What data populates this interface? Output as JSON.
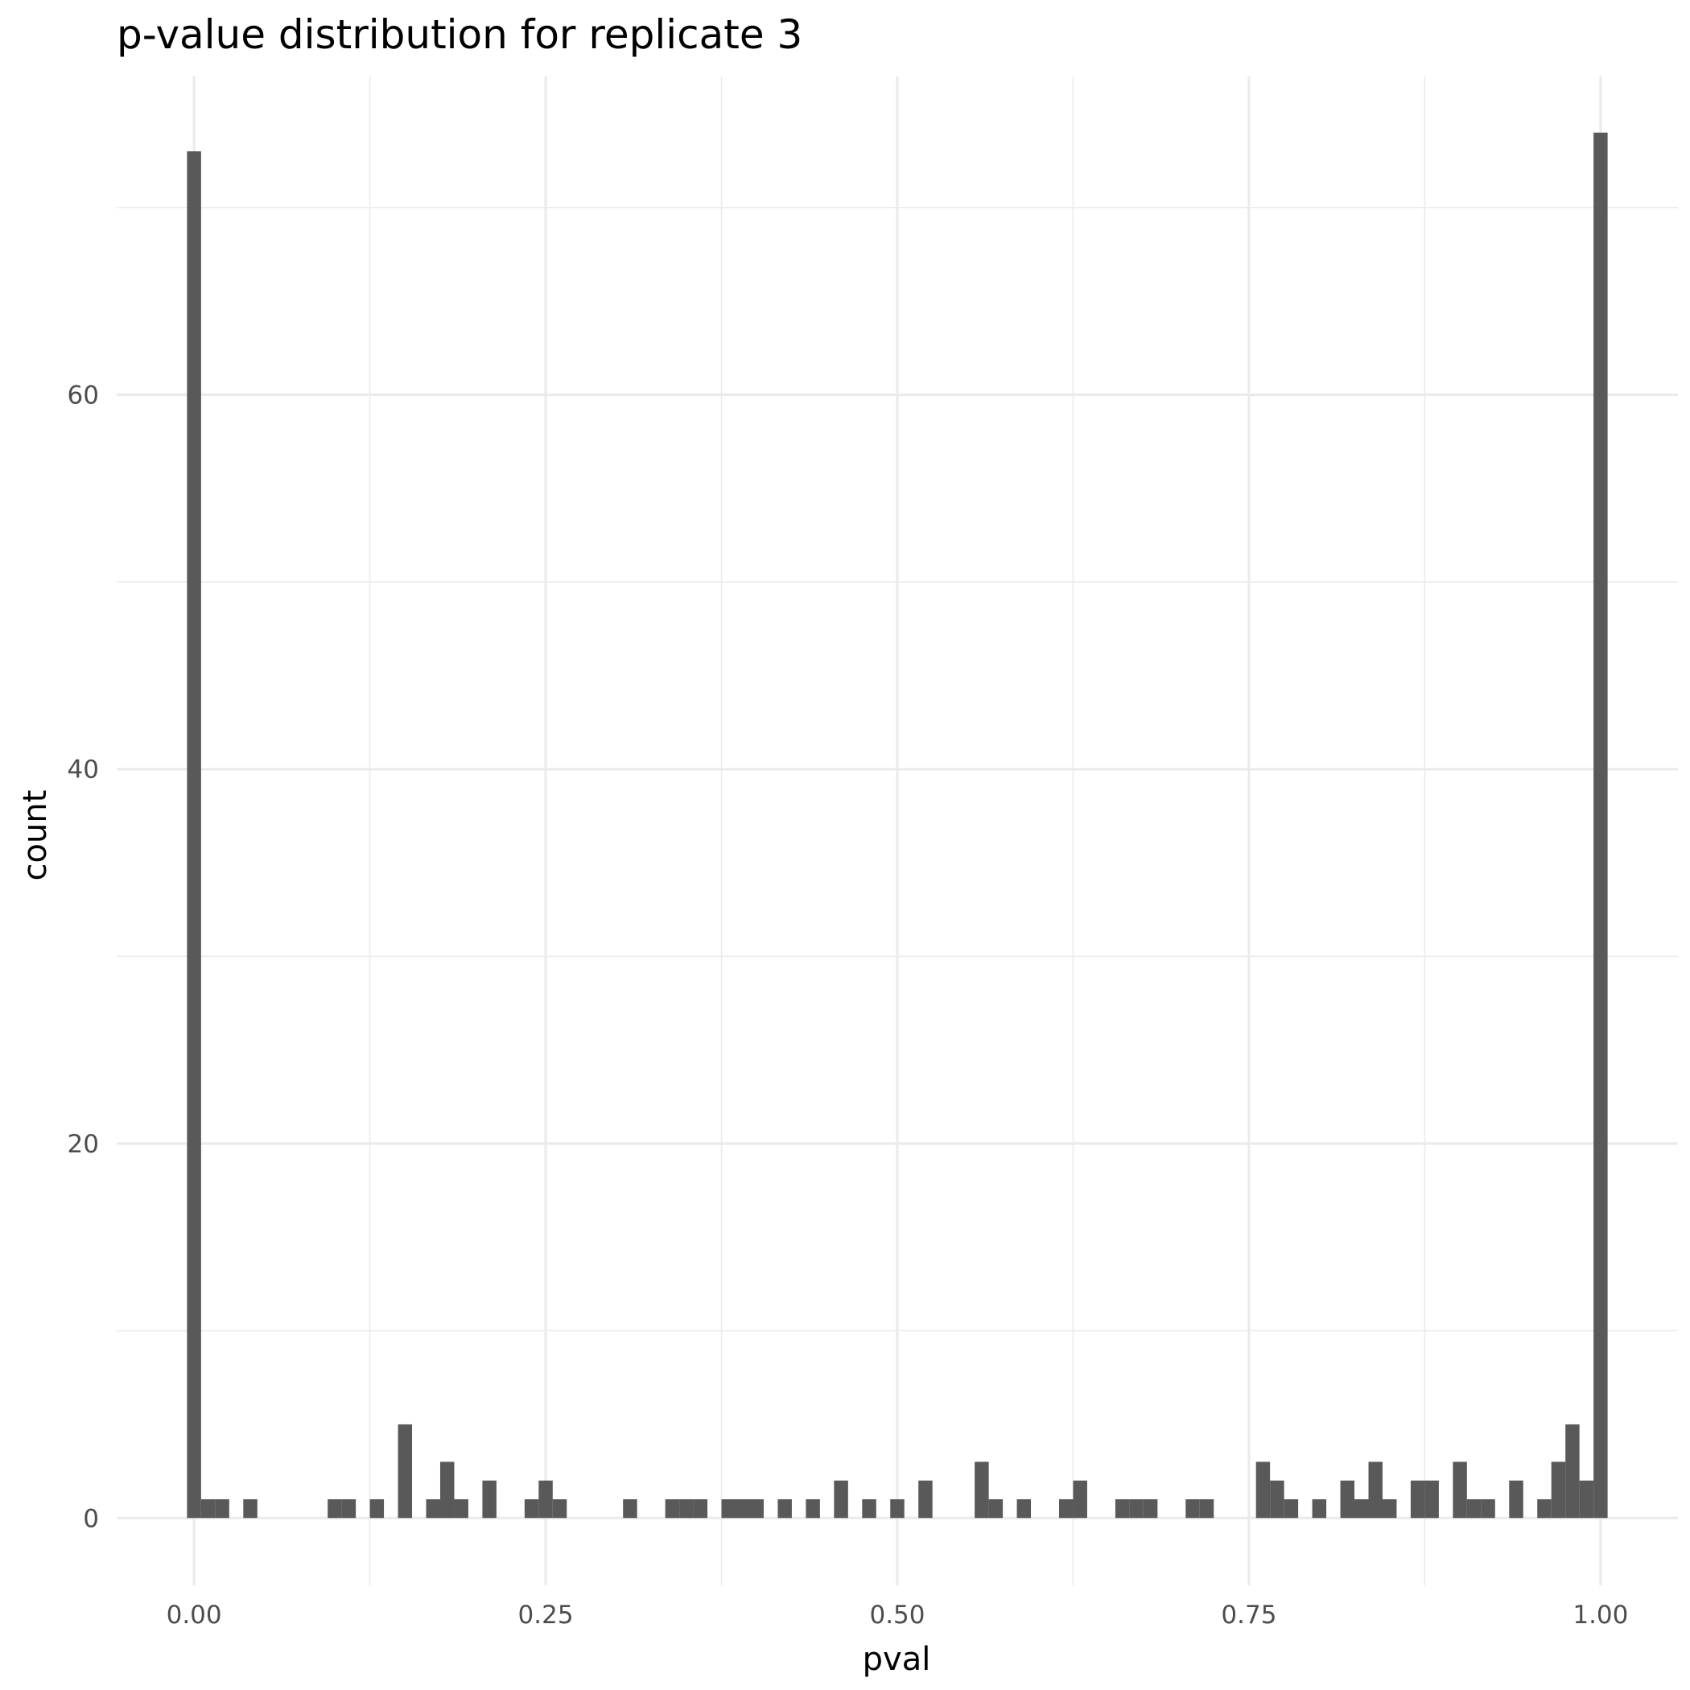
{
  "chart_data": {
    "type": "bar",
    "title": "p-value distribution for replicate 3",
    "xlabel": "pval",
    "ylabel": "count",
    "xlim": [
      -0.055,
      1.055
    ],
    "ylim": [
      -3.6,
      77
    ],
    "x_ticks": [
      {
        "value": 0.0,
        "label": "0.00"
      },
      {
        "value": 0.25,
        "label": "0.25"
      },
      {
        "value": 0.5,
        "label": "0.50"
      },
      {
        "value": 0.75,
        "label": "0.75"
      },
      {
        "value": 1.0,
        "label": "1.00"
      }
    ],
    "y_ticks": [
      {
        "value": 0,
        "label": "0"
      },
      {
        "value": 20,
        "label": "20"
      },
      {
        "value": 40,
        "label": "40"
      },
      {
        "value": 60,
        "label": "60"
      }
    ],
    "x_minor": [
      0.125,
      0.375,
      0.625,
      0.875
    ],
    "y_minor": [
      10,
      30,
      50,
      70
    ],
    "grid": true,
    "legend": "none",
    "bar_color": "#595959",
    "bin_width": 0.01,
    "bins": {
      "center": [
        0.0,
        0.01,
        0.02,
        0.03,
        0.04,
        0.05,
        0.06,
        0.07,
        0.08,
        0.09,
        0.1,
        0.11,
        0.12,
        0.13,
        0.14,
        0.15,
        0.16,
        0.17,
        0.18,
        0.19,
        0.2,
        0.21,
        0.22,
        0.23,
        0.24,
        0.25,
        0.26,
        0.27,
        0.28,
        0.29,
        0.3,
        0.31,
        0.32,
        0.33,
        0.34,
        0.35,
        0.36,
        0.37,
        0.38,
        0.39,
        0.4,
        0.41,
        0.42,
        0.43,
        0.44,
        0.45,
        0.46,
        0.47,
        0.48,
        0.49,
        0.5,
        0.51,
        0.52,
        0.53,
        0.54,
        0.55,
        0.56,
        0.57,
        0.58,
        0.59,
        0.6,
        0.61,
        0.62,
        0.63,
        0.64,
        0.65,
        0.66,
        0.67,
        0.68,
        0.69,
        0.7,
        0.71,
        0.72,
        0.73,
        0.74,
        0.75,
        0.76,
        0.77,
        0.78,
        0.79,
        0.8,
        0.81,
        0.82,
        0.83,
        0.84,
        0.85,
        0.86,
        0.87,
        0.88,
        0.89,
        0.9,
        0.91,
        0.92,
        0.93,
        0.94,
        0.95,
        0.96,
        0.97,
        0.98,
        0.99,
        1.0
      ],
      "count": [
        73,
        1,
        1,
        0,
        1,
        0,
        0,
        0,
        0,
        0,
        1,
        1,
        0,
        1,
        0,
        5,
        0,
        1,
        3,
        1,
        0,
        2,
        0,
        0,
        1,
        2,
        1,
        0,
        0,
        0,
        0,
        1,
        0,
        0,
        1,
        1,
        1,
        0,
        1,
        1,
        1,
        0,
        1,
        0,
        1,
        0,
        2,
        0,
        1,
        0,
        1,
        0,
        2,
        0,
        0,
        0,
        3,
        1,
        0,
        1,
        0,
        0,
        1,
        2,
        0,
        0,
        1,
        1,
        1,
        0,
        0,
        1,
        1,
        0,
        0,
        0,
        3,
        2,
        1,
        0,
        1,
        0,
        2,
        1,
        3,
        1,
        0,
        2,
        2,
        0,
        3,
        1,
        1,
        0,
        2,
        0,
        1,
        3,
        5,
        2,
        74
      ]
    }
  }
}
